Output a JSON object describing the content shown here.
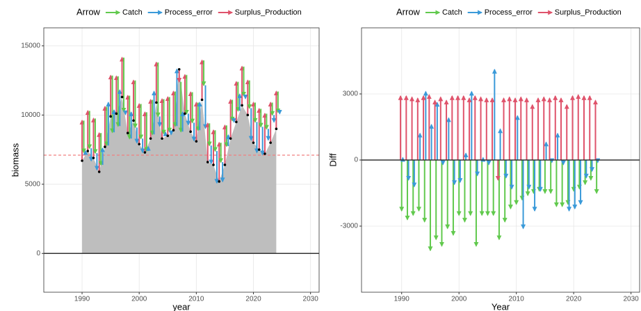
{
  "chart_data": [
    {
      "type": "area",
      "x_label": "year",
      "y_label": "biomass",
      "x": [
        1990,
        1991,
        1992,
        1993,
        1994,
        1995,
        1996,
        1997,
        1998,
        1999,
        2000,
        2001,
        2002,
        2003,
        2004,
        2005,
        2006,
        2007,
        2008,
        2009,
        2010,
        2011,
        2012,
        2013,
        2014,
        2015,
        2016,
        2017,
        2018,
        2019,
        2020,
        2021,
        2022,
        2023,
        2024
      ],
      "values": [
        6700,
        7400,
        6900,
        5900,
        7700,
        9900,
        10100,
        11300,
        8700,
        9600,
        7900,
        7300,
        8300,
        10900,
        8300,
        8500,
        8900,
        13300,
        10100,
        8800,
        8100,
        11100,
        6600,
        6400,
        5200,
        6400,
        8300,
        9500,
        10700,
        10000,
        8000,
        7500,
        7200,
        8000,
        9000
      ],
      "color": "#bebebe",
      "reference_line": {
        "value": 7100,
        "color": "#f08080"
      },
      "xlim": [
        1983.3,
        2031.5
      ],
      "ylim": [
        -2800,
        16300
      ],
      "xticks": [
        1990,
        2000,
        2010,
        2020,
        2030
      ],
      "yticks": [
        0,
        5000,
        10000,
        15000
      ],
      "grid": true
    },
    {
      "type": "arrow",
      "x_label": "Year",
      "y_label": "Diff",
      "legend_title": "Arrow",
      "legend": "top",
      "x": [
        1990,
        1991,
        1992,
        1993,
        1994,
        1995,
        1996,
        1997,
        1998,
        1999,
        2000,
        2001,
        2002,
        2003,
        2004,
        2005,
        2006,
        2007,
        2008,
        2009,
        2010,
        2011,
        2012,
        2013,
        2014,
        2015,
        2016,
        2017,
        2018,
        2019,
        2020,
        2021,
        2022,
        2023,
        2024
      ],
      "series": [
        {
          "name": "Catch",
          "color": "#61c94d",
          "values": [
            -2300,
            -2700,
            -2500,
            -2300,
            -2800,
            -4100,
            -3600,
            -3900,
            -3100,
            -3400,
            -2500,
            -2800,
            -2500,
            -3900,
            -2500,
            -2500,
            -2500,
            -3600,
            -2800,
            -2200,
            -2000,
            -1800,
            -1600,
            -1500,
            -1400,
            -1500,
            -1500,
            -2100,
            -2100,
            -2000,
            -1400,
            -1300,
            -1100,
            -900,
            -1500
          ]
        },
        {
          "name": "Process_error",
          "color": "#3a9ad9",
          "values": [
            100,
            -900,
            -1200,
            1200,
            3100,
            1600,
            2600,
            -200,
            1900,
            -1100,
            -1000,
            300,
            3100,
            -700,
            100,
            -200,
            4100,
            1400,
            -800,
            -1300,
            2000,
            -3100,
            -1300,
            -2300,
            -1400,
            800,
            -100,
            1200,
            -200,
            -2300,
            -2200,
            -2000,
            -800,
            -500,
            -100
          ]
        },
        {
          "name": "Surplus_Production",
          "color": "#df536b",
          "values": [
            2900,
            2900,
            2850,
            2800,
            2900,
            2950,
            2700,
            2850,
            2700,
            2900,
            2900,
            2900,
            2800,
            2900,
            2850,
            2800,
            2800,
            -900,
            2800,
            2850,
            2800,
            2850,
            2800,
            2500,
            2800,
            2850,
            2800,
            2900,
            2800,
            2500,
            2900,
            2950,
            2900,
            2900,
            2700
          ]
        }
      ],
      "xlim": [
        1983,
        2031.5
      ],
      "ylim": [
        -6000,
        6000
      ],
      "xticks": [
        1990,
        2000,
        2010,
        2020,
        2030
      ],
      "yticks": [
        -3000,
        0,
        3000
      ],
      "grid": true
    }
  ]
}
